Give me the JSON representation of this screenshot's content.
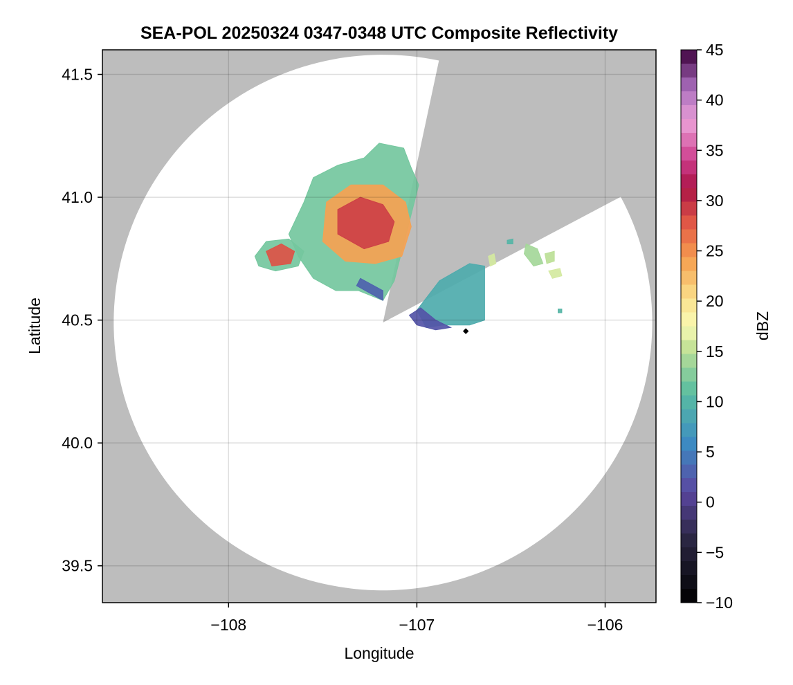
{
  "chart_data": {
    "type": "heatmap",
    "title": "SEA-POL 20250324 0347-0348 UTC Composite Reflectivity",
    "xlabel": "Longitude",
    "ylabel": "Latitude",
    "xlim": [
      -108.67,
      -105.73
    ],
    "ylim": [
      39.35,
      41.6
    ],
    "xticks": [
      -108,
      -107,
      -106
    ],
    "xtick_labels": [
      "−108",
      "−107",
      "−106"
    ],
    "yticks": [
      39.5,
      40.0,
      40.5,
      41.0,
      41.5
    ],
    "ytick_labels": [
      "39.5",
      "40.0",
      "40.5",
      "41.0",
      "41.5"
    ],
    "grid": true,
    "background_color": "#bdbdbd",
    "radar": {
      "center_lon": -107.18,
      "center_lat": 40.49,
      "range_lat_deg": 1.09,
      "range_lon_deg": 1.43,
      "blocked_sectors": [
        [
          12,
          62
        ]
      ]
    },
    "site_marker": {
      "lon": -106.74,
      "lat": 40.455
    },
    "colorbar": {
      "label": "dBZ",
      "min": -10,
      "max": 45,
      "ticks": [
        -10,
        -5,
        0,
        5,
        10,
        15,
        20,
        25,
        30,
        35,
        40,
        45
      ],
      "tick_labels": [
        "−10",
        "−5",
        "0",
        "5",
        "10",
        "15",
        "20",
        "25",
        "30",
        "35",
        "40",
        "45"
      ],
      "colormap": "spectral-extended",
      "levels": 40
    },
    "echo_regions": [
      {
        "name": "main",
        "value": 12,
        "points": [
          [
            -107.55,
            41.08
          ],
          [
            -107.42,
            41.13
          ],
          [
            -107.28,
            41.16
          ],
          [
            -107.2,
            41.22
          ],
          [
            -107.07,
            41.2
          ],
          [
            -107.03,
            41.12
          ],
          [
            -106.99,
            41.05
          ],
          [
            -107.06,
            40.84
          ],
          [
            -107.12,
            40.66
          ],
          [
            -107.18,
            40.58
          ],
          [
            -107.31,
            40.62
          ],
          [
            -107.43,
            40.62
          ],
          [
            -107.55,
            40.67
          ],
          [
            -107.63,
            40.76
          ],
          [
            -107.68,
            40.85
          ],
          [
            -107.6,
            40.98
          ]
        ]
      },
      {
        "name": "west-cell",
        "value": 12,
        "points": [
          [
            -107.86,
            40.76
          ],
          [
            -107.8,
            40.82
          ],
          [
            -107.68,
            40.83
          ],
          [
            -107.6,
            40.78
          ],
          [
            -107.63,
            40.72
          ],
          [
            -107.75,
            40.7
          ],
          [
            -107.84,
            40.72
          ]
        ]
      },
      {
        "name": "core-1",
        "value": 24,
        "points": [
          [
            -107.48,
            40.98
          ],
          [
            -107.35,
            41.05
          ],
          [
            -107.18,
            41.05
          ],
          [
            -107.06,
            40.98
          ],
          [
            -107.03,
            40.88
          ],
          [
            -107.08,
            40.76
          ],
          [
            -107.22,
            40.73
          ],
          [
            -107.38,
            40.74
          ],
          [
            -107.5,
            40.82
          ]
        ]
      },
      {
        "name": "core-2",
        "value": 29,
        "points": [
          [
            -107.42,
            40.95
          ],
          [
            -107.3,
            41.0
          ],
          [
            -107.18,
            40.97
          ],
          [
            -107.12,
            40.9
          ],
          [
            -107.15,
            40.82
          ],
          [
            -107.28,
            40.79
          ],
          [
            -107.42,
            40.85
          ]
        ]
      },
      {
        "name": "core-west",
        "value": 28,
        "points": [
          [
            -107.8,
            40.78
          ],
          [
            -107.72,
            40.81
          ],
          [
            -107.65,
            40.78
          ],
          [
            -107.67,
            40.73
          ],
          [
            -107.77,
            40.72
          ]
        ]
      },
      {
        "name": "south-edge",
        "value": 3,
        "points": [
          [
            -107.32,
            40.64
          ],
          [
            -107.18,
            40.58
          ],
          [
            -107.18,
            40.62
          ],
          [
            -107.3,
            40.67
          ]
        ]
      },
      {
        "name": "east-cell",
        "value": 9,
        "points": [
          [
            -107.0,
            40.54
          ],
          [
            -106.88,
            40.66
          ],
          [
            -106.72,
            40.73
          ],
          [
            -106.64,
            40.72
          ],
          [
            -106.64,
            40.5
          ],
          [
            -106.72,
            40.48
          ],
          [
            -106.86,
            40.48
          ],
          [
            -106.95,
            40.47
          ]
        ]
      },
      {
        "name": "east-edge",
        "value": 2,
        "points": [
          [
            -107.04,
            40.52
          ],
          [
            -106.98,
            40.55
          ],
          [
            -106.9,
            40.5
          ],
          [
            -106.82,
            40.47
          ],
          [
            -106.9,
            40.46
          ],
          [
            -107.0,
            40.48
          ]
        ]
      },
      {
        "name": "scatter-1",
        "value": 14,
        "points": [
          [
            -106.42,
            40.81
          ],
          [
            -106.36,
            40.79
          ],
          [
            -106.33,
            40.73
          ],
          [
            -106.38,
            40.72
          ],
          [
            -106.43,
            40.77
          ]
        ]
      },
      {
        "name": "scatter-2",
        "value": 15,
        "points": [
          [
            -106.32,
            40.77
          ],
          [
            -106.27,
            40.78
          ],
          [
            -106.27,
            40.74
          ],
          [
            -106.31,
            40.73
          ]
        ]
      },
      {
        "name": "scatter-3",
        "value": 16,
        "points": [
          [
            -106.3,
            40.7
          ],
          [
            -106.24,
            40.71
          ],
          [
            -106.23,
            40.68
          ],
          [
            -106.28,
            40.67
          ]
        ]
      },
      {
        "name": "scatter-4",
        "value": 16,
        "points": [
          [
            -106.62,
            40.76
          ],
          [
            -106.59,
            40.77
          ],
          [
            -106.58,
            40.73
          ],
          [
            -106.61,
            40.72
          ]
        ]
      },
      {
        "name": "scatter-5",
        "value": 10,
        "points": [
          [
            -106.25,
            40.545
          ],
          [
            -106.23,
            40.545
          ],
          [
            -106.23,
            40.53
          ],
          [
            -106.25,
            40.53
          ]
        ]
      },
      {
        "name": "scatter-6",
        "value": 10,
        "points": [
          [
            -106.52,
            40.825
          ],
          [
            -106.49,
            40.83
          ],
          [
            -106.49,
            40.81
          ],
          [
            -106.52,
            40.81
          ]
        ]
      }
    ]
  }
}
